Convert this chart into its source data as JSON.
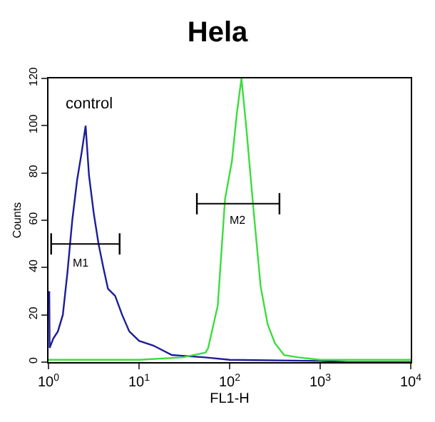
{
  "chart_data": {
    "type": "line",
    "title": "Hela",
    "xlabel": "FL1-H",
    "ylabel": "Counts",
    "log": "x",
    "xlim": [
      1,
      10000
    ],
    "xticks": [
      {
        "value": 1,
        "label": "10$^{0}$"
      },
      {
        "value": 10,
        "label": "10$^{1}$"
      },
      {
        "value": 100,
        "label": "10$^{2}$"
      },
      {
        "value": 1000,
        "label": "10$^{3}$"
      },
      {
        "value": 10000,
        "label": "10$^{4}$"
      }
    ],
    "ylim": [
      0,
      120
    ],
    "yticks": [
      0,
      20,
      40,
      60,
      80,
      100,
      120
    ],
    "grid": false,
    "series": [
      {
        "color": "#1c1c9c",
        "x": [
          1.02,
          1.03,
          1.13,
          1.27,
          1.44,
          1.62,
          1.83,
          2.07,
          2.33,
          2.57,
          2.8,
          3.16,
          3.57,
          4.03,
          4.54,
          5.45,
          6.5,
          7.8,
          10,
          14.4,
          23,
          54,
          100,
          1000,
          2000,
          10000
        ],
        "values": [
          30,
          6,
          10,
          13,
          20,
          38,
          60,
          77,
          89,
          100,
          79,
          63,
          50,
          40,
          31,
          28,
          20,
          13,
          9,
          7,
          3,
          2,
          1,
          0.5,
          0,
          0
        ]
      },
      {
        "color": "#3ddc3d",
        "x": [
          1,
          3,
          10,
          30,
          54,
          58,
          74,
          89,
          106,
          120,
          135,
          153,
          183,
          220,
          263,
          316,
          400,
          580,
          1000,
          10000
        ],
        "values": [
          1,
          1,
          1,
          2,
          4,
          6,
          24,
          69,
          85,
          105,
          120,
          99,
          65,
          32,
          16,
          8,
          3,
          2,
          1,
          1
        ]
      },
      {
        "color": "#000000",
        "x": [
          1.07,
          6.1
        ],
        "values": [
          50,
          50
        ]
      },
      {
        "color": "#000000",
        "x": [
          43.5,
          355
        ],
        "values": [
          67,
          67
        ]
      }
    ],
    "annotations": [
      "control",
      "M1",
      "M2"
    ]
  }
}
